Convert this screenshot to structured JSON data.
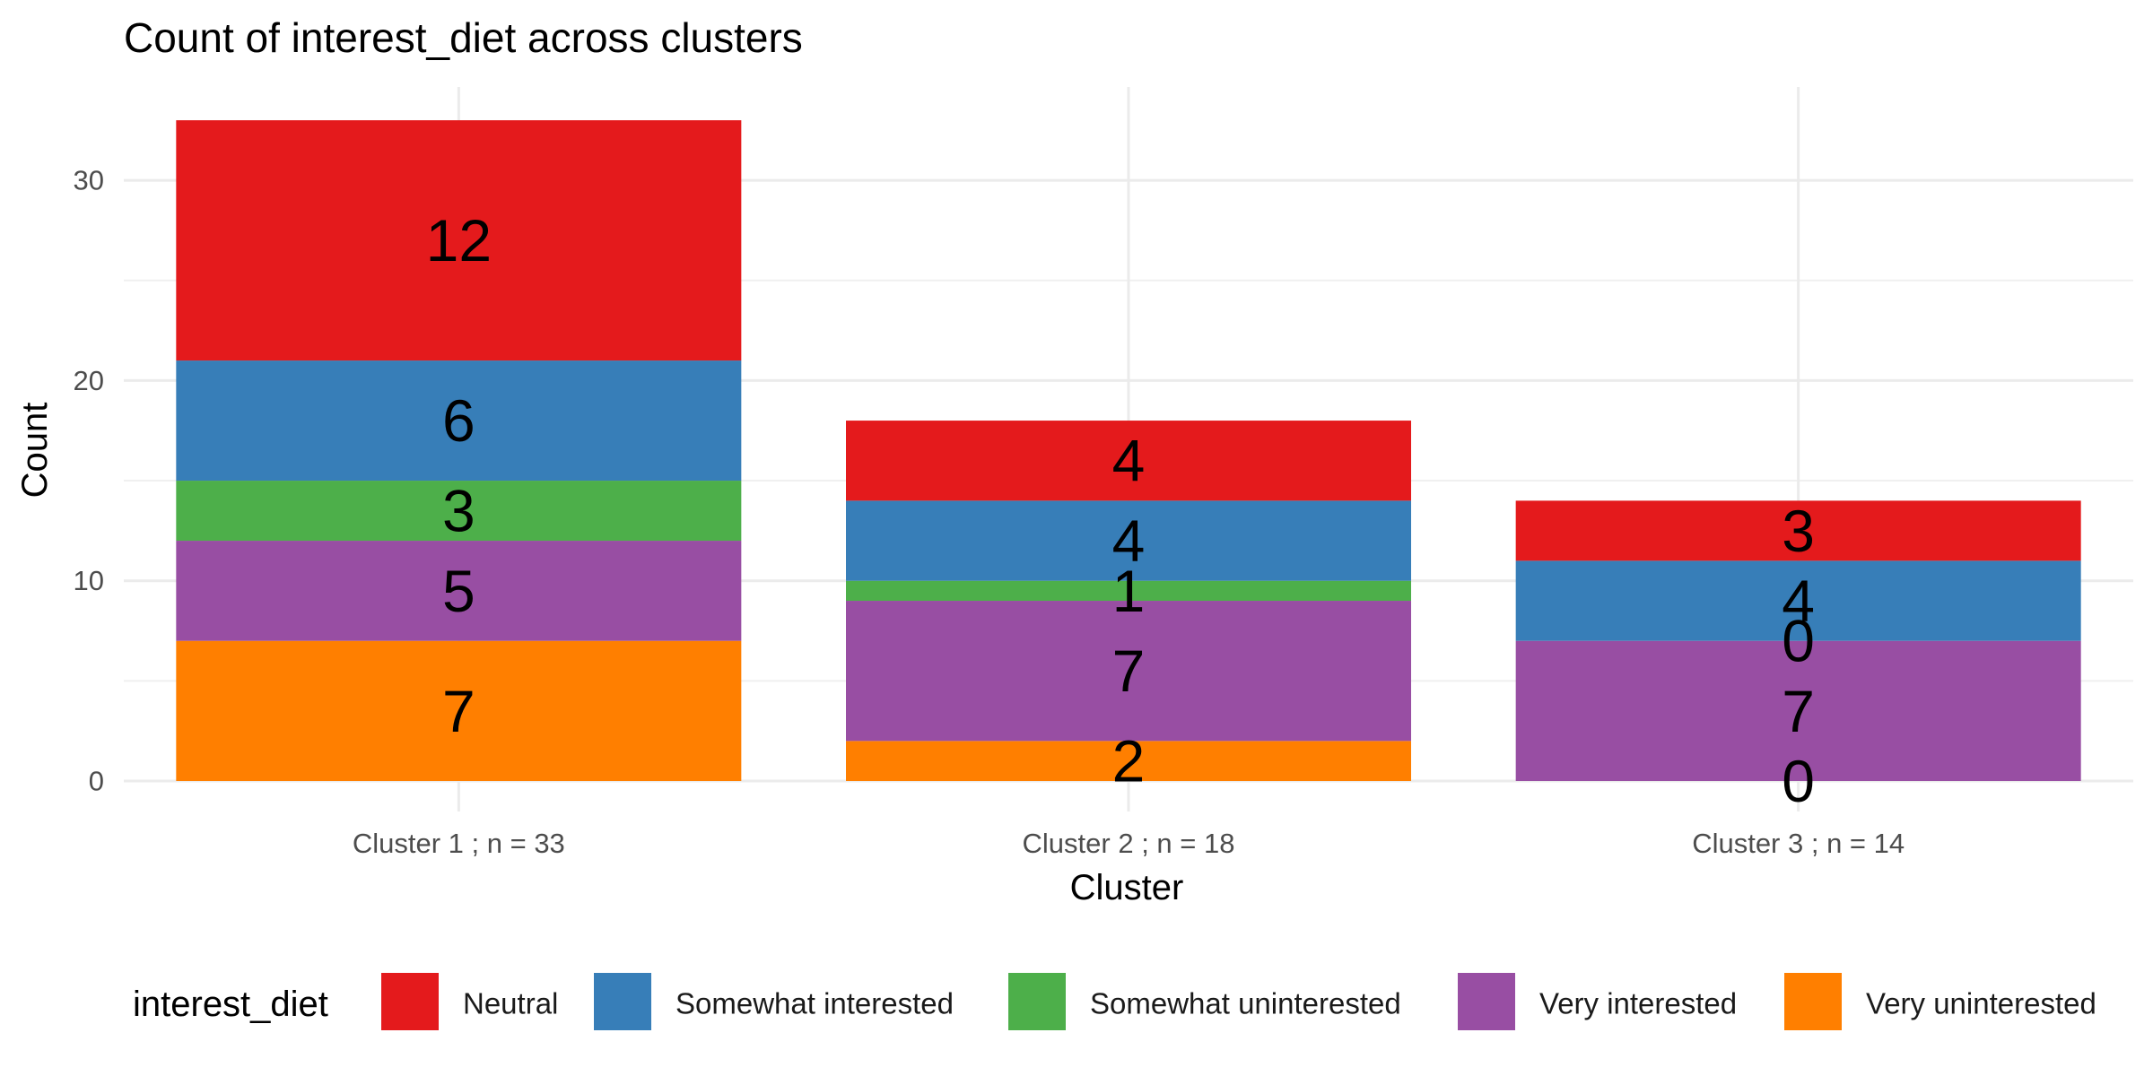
{
  "chart_data": {
    "type": "bar",
    "stacked": true,
    "title": "Count of interest_diet across clusters",
    "xlabel": "Cluster",
    "ylabel": "Count",
    "ylim": [
      0,
      33
    ],
    "yticks": [
      0,
      10,
      20,
      30
    ],
    "grid": true,
    "legend_position": "bottom",
    "legend_title": "interest_diet",
    "categories": [
      "Cluster 1 ; n = 33",
      "Cluster 2 ; n = 18",
      "Cluster 3 ; n = 14"
    ],
    "stack_order_bottom_to_top": [
      "Very uninterested",
      "Very interested",
      "Somewhat uninterested",
      "Somewhat interested",
      "Neutral"
    ],
    "series": [
      {
        "name": "Neutral",
        "color": "#E41A1C",
        "values": [
          12,
          4,
          3
        ]
      },
      {
        "name": "Somewhat interested",
        "color": "#377EB8",
        "values": [
          6,
          4,
          4
        ]
      },
      {
        "name": "Somewhat uninterested",
        "color": "#4DAF4A",
        "values": [
          3,
          1,
          0
        ]
      },
      {
        "name": "Very interested",
        "color": "#984EA3",
        "values": [
          5,
          7,
          7
        ]
      },
      {
        "name": "Very uninterested",
        "color": "#FF7F00",
        "values": [
          7,
          2,
          0
        ]
      }
    ]
  }
}
